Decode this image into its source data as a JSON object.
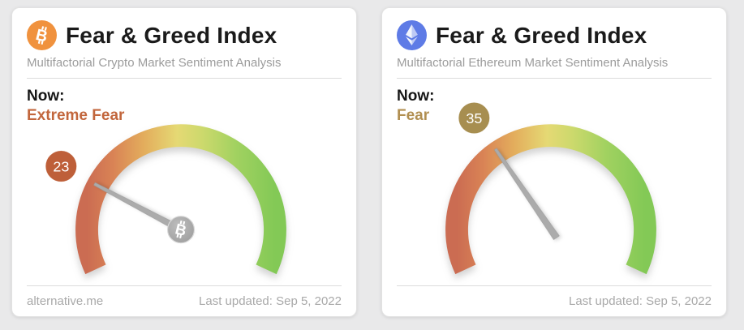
{
  "page": {
    "background_color": "#e9e9ea"
  },
  "cards": [
    {
      "id": "crypto",
      "icon": "bitcoin-icon",
      "accent_color": "#f0923e",
      "title": "Fear & Greed Index",
      "subtitle": "Multifactorial Crypto Market Sentiment Analysis",
      "now_label": "Now:",
      "status": "Extreme Fear",
      "status_color": "#c2663c",
      "value": 23,
      "badge_color": "#be5f39",
      "footer_left": "alternative.me",
      "footer_right": "Last updated: Sep 5, 2022"
    },
    {
      "id": "ethereum",
      "icon": "ethereum-icon",
      "accent_color": "#5e7be6",
      "title": "Fear & Greed Index",
      "subtitle": "Multifactorial Ethereum Market Sentiment Analysis",
      "now_label": "Now:",
      "status": "Fear",
      "status_color": "#b18f51",
      "value": 35,
      "badge_color": "#a78e50",
      "footer_left": "",
      "footer_right": "Last updated: Sep 5, 2022"
    }
  ],
  "chart_data": [
    {
      "type": "gauge",
      "title": "Fear & Greed Index",
      "subtitle": "Multifactorial Crypto Market Sentiment Analysis",
      "value": 23,
      "range": [
        0,
        100
      ],
      "label": "Extreme Fear",
      "updated": "Sep 5, 2022",
      "source": "alternative.me",
      "scale_gradient": [
        "#cb6c52",
        "#d98355",
        "#e3ac5c",
        "#e5d974",
        "#cbd96c",
        "#a0d160",
        "#83c956"
      ],
      "sweep_degrees": 230
    },
    {
      "type": "gauge",
      "title": "Fear & Greed Index",
      "subtitle": "Multifactorial Ethereum Market Sentiment Analysis",
      "value": 35,
      "range": [
        0,
        100
      ],
      "label": "Fear",
      "updated": "Sep 5, 2022",
      "scale_gradient": [
        "#cb6c52",
        "#d98355",
        "#e3ac5c",
        "#e5d974",
        "#cbd96c",
        "#a0d160",
        "#83c956"
      ],
      "sweep_degrees": 230
    }
  ]
}
